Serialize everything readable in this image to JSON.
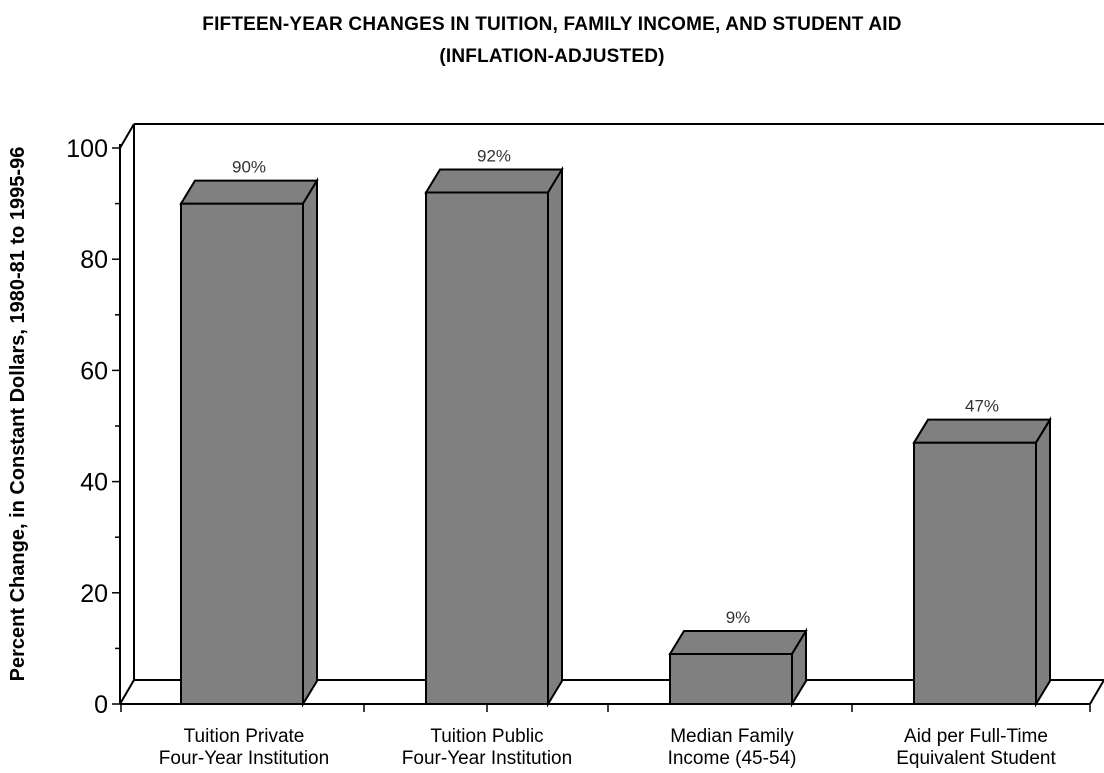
{
  "chart_data": {
    "type": "bar",
    "title": "FIFTEEN-YEAR CHANGES IN TUITION, FAMILY INCOME, AND STUDENT AID",
    "subtitle": "(INFLATION-ADJUSTED)",
    "ylabel": "Percent Change, in Constant Dollars, 1980-81 to 1995-96",
    "xlabel": "",
    "ylim": [
      0,
      100
    ],
    "yticks": [
      0,
      20,
      40,
      60,
      80,
      100
    ],
    "grid": false,
    "categories": [
      [
        "Tuition Private",
        "Four-Year Institution"
      ],
      [
        "Tuition Public",
        "Four-Year Institution"
      ],
      [
        "Median Family",
        "Income (45-54)"
      ],
      [
        "Aid per Full-Time",
        "Equivalent Student"
      ]
    ],
    "values": [
      90,
      92,
      9,
      47
    ],
    "data_labels": [
      "90%",
      "92%",
      "9%",
      "47%"
    ],
    "colors": {
      "bar_front": "#808080",
      "bar_top": "#808080",
      "bar_side": "#7f7f7f",
      "outline": "#000000",
      "background": "#ffffff"
    }
  }
}
